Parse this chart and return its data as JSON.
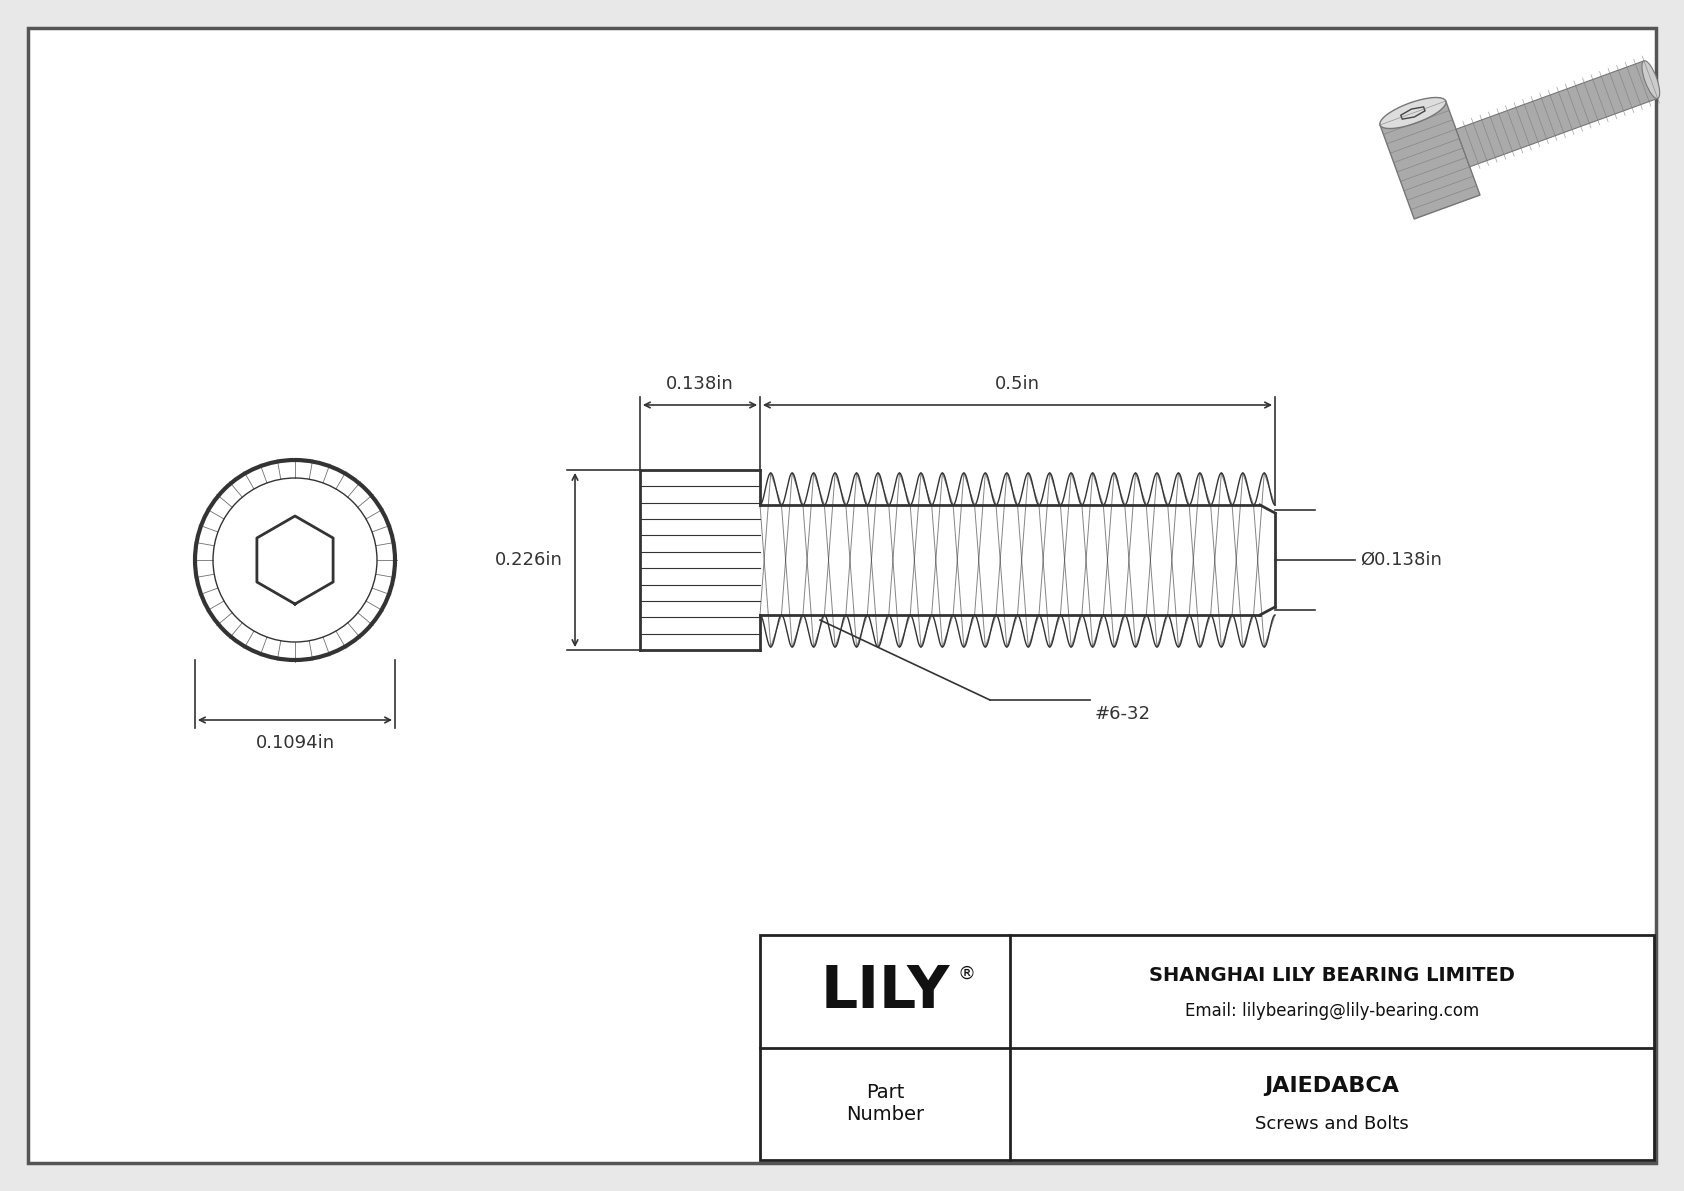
{
  "bg_color": "#e8e8e8",
  "inner_bg": "#ffffff",
  "border_color": "#555555",
  "drawing_color": "#333333",
  "dim_color": "#333333",
  "title_company": "SHANGHAI LILY BEARING LIMITED",
  "title_email": "Email: lilybearing@lily-bearing.com",
  "part_label": "Part\nNumber",
  "part_number": "JAIEDABCA",
  "part_category": "Screws and Bolts",
  "lily_text": "LILY",
  "dim_head_width": "0.138in",
  "dim_shaft_length": "0.5in",
  "dim_head_height": "0.226in",
  "dim_diameter": "Ø0.138in",
  "dim_face_dia": "0.1094in",
  "thread_label": "#6-32"
}
